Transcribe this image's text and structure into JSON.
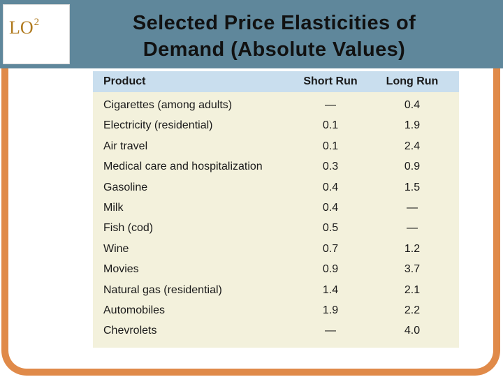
{
  "logo": {
    "lo": "LO",
    "number": "2"
  },
  "title": {
    "line1": "Selected Price Elasticities of",
    "line2": "Demand (Absolute Values)"
  },
  "table": {
    "headers": [
      "Product",
      "Short Run",
      "Long Run"
    ],
    "rows": [
      [
        "Cigarettes (among adults)",
        "—",
        "0.4"
      ],
      [
        "Electricity (residential)",
        "0.1",
        "1.9"
      ],
      [
        "Air travel",
        "0.1",
        "2.4"
      ],
      [
        "Medical care and hospitalization",
        "0.3",
        "0.9"
      ],
      [
        "Gasoline",
        "0.4",
        "1.5"
      ],
      [
        "Milk",
        "0.4",
        "—"
      ],
      [
        "Fish (cod)",
        "0.5",
        "—"
      ],
      [
        "Wine",
        "0.7",
        "1.2"
      ],
      [
        "Movies",
        "0.9",
        "3.7"
      ],
      [
        "Natural gas (residential)",
        "1.4",
        "2.1"
      ],
      [
        "Automobiles",
        "1.9",
        "2.2"
      ],
      [
        "Chevrolets",
        "—",
        "4.0"
      ]
    ]
  },
  "colors": {
    "header_band": "#5f879b",
    "frame": "#e08a49",
    "table_bg": "#f3f1dc",
    "table_header": "#c9deee",
    "lo_text": "#b07a1e"
  }
}
